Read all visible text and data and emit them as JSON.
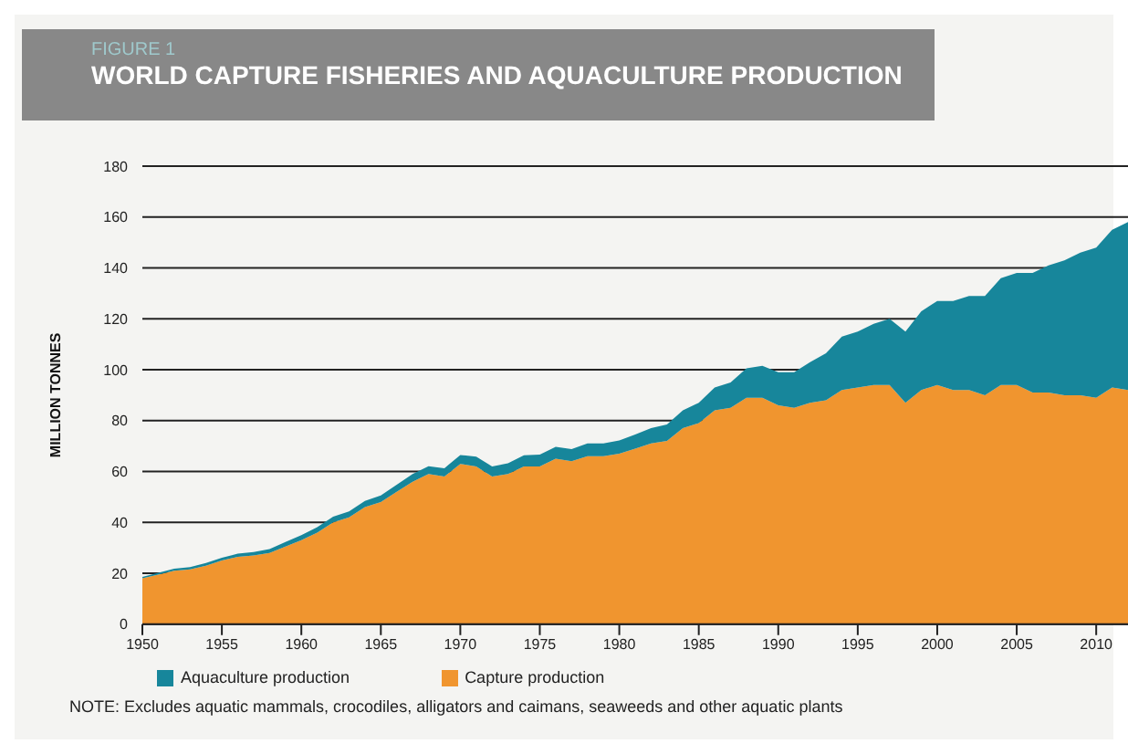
{
  "chart_data": {
    "type": "area",
    "subtitle": "FIGURE 1",
    "title": "WORLD CAPTURE FISHERIES AND AQUACULTURE PRODUCTION",
    "ylabel": "MILLION TONNES",
    "stacked": true,
    "x": [
      1950,
      1951,
      1952,
      1953,
      1954,
      1955,
      1956,
      1957,
      1958,
      1959,
      1960,
      1961,
      1962,
      1963,
      1964,
      1965,
      1966,
      1967,
      1968,
      1969,
      1970,
      1971,
      1972,
      1973,
      1974,
      1975,
      1976,
      1977,
      1978,
      1979,
      1980,
      1981,
      1982,
      1983,
      1984,
      1985,
      1986,
      1987,
      1988,
      1989,
      1990,
      1991,
      1992,
      1993,
      1994,
      1995,
      1996,
      1997,
      1998,
      1999,
      2000,
      2001,
      2002,
      2003,
      2004,
      2005,
      2006,
      2007,
      2008,
      2009,
      2010,
      2011,
      2012
    ],
    "series": [
      {
        "name": "Capture production",
        "color": "#f0952f",
        "values": [
          18,
          19.5,
          21,
          21.5,
          23,
          25,
          26.5,
          27,
          28,
          30.5,
          33,
          36,
          40,
          42,
          46,
          48,
          52,
          56,
          59,
          58,
          63,
          62,
          58,
          59,
          62,
          62,
          65,
          64,
          66,
          66,
          67,
          69,
          71,
          72,
          77,
          79,
          84,
          85,
          89,
          89,
          86,
          85,
          87,
          88,
          92,
          93,
          94,
          94,
          87,
          92,
          94,
          92,
          92,
          90,
          94,
          94,
          91,
          91,
          90,
          90,
          89,
          93,
          92
        ]
      },
      {
        "name": "Aquaculture production",
        "color": "#17869b",
        "values": [
          0.6,
          0.7,
          0.8,
          0.9,
          1,
          1.1,
          1.2,
          1.3,
          1.5,
          1.8,
          2,
          2.1,
          2.2,
          2.3,
          2.4,
          2.6,
          2.8,
          3,
          3.1,
          3.3,
          3.5,
          3.8,
          4,
          4.2,
          4.4,
          4.6,
          4.7,
          4.8,
          5,
          5,
          5.2,
          5.5,
          6,
          6.5,
          7,
          8,
          9,
          10,
          11.5,
          12.5,
          13,
          14,
          16,
          18.5,
          21,
          22,
          24,
          26,
          28,
          31,
          33,
          35,
          37,
          39,
          42,
          44,
          47,
          50,
          53,
          56,
          59,
          62,
          66
        ]
      }
    ],
    "xlim": [
      1950,
      2012
    ],
    "xticks": [
      1950,
      1955,
      1960,
      1965,
      1970,
      1975,
      1980,
      1985,
      1990,
      1995,
      2000,
      2005,
      2010
    ],
    "ylim": [
      0,
      180
    ],
    "yticks": [
      0,
      20,
      40,
      60,
      80,
      100,
      120,
      140,
      160,
      180
    ],
    "grid": "y",
    "legend": "bottom left",
    "annotations": [
      "NOTE: Excludes aquatic mammals, crocodiles, alligators and caimans, seaweeds and other aquatic plants"
    ]
  }
}
